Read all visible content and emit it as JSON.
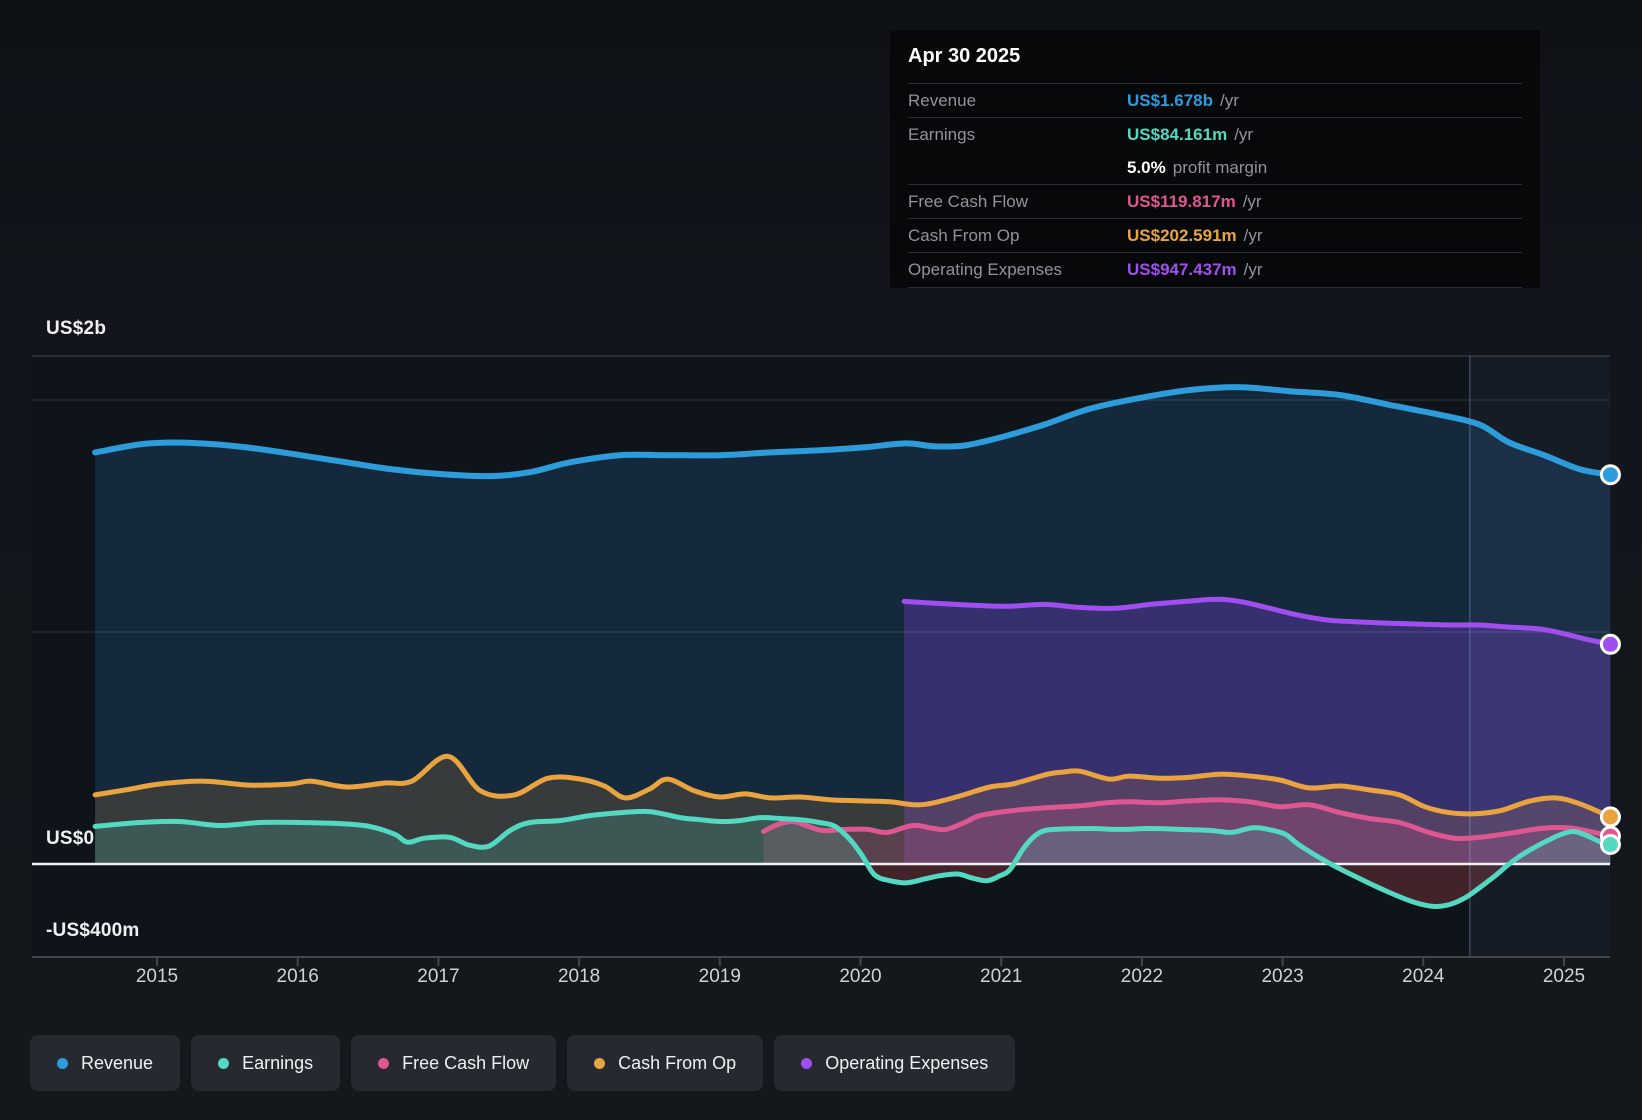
{
  "page": {
    "background": "#14181d"
  },
  "tooltip": {
    "title": "Apr 30 2025",
    "rows": [
      {
        "label": "Revenue",
        "value": "US$1.678b",
        "suffix": "/yr",
        "color": "#2d9cdb",
        "separator": true
      },
      {
        "label": "Earnings",
        "value": "US$84.161m",
        "suffix": "/yr",
        "color": "#53d9c1",
        "separator": true
      },
      {
        "label": "",
        "value": "5.0%",
        "suffix": "profit margin",
        "color": "#ffffff",
        "separator": false
      },
      {
        "label": "Free Cash Flow",
        "value": "US$119.817m",
        "suffix": "/yr",
        "color": "#df5790",
        "separator": true
      },
      {
        "label": "Cash From Op",
        "value": "US$202.591m",
        "suffix": "/yr",
        "color": "#e9a440",
        "separator": true
      },
      {
        "label": "Operating Expenses",
        "value": "US$947.437m",
        "suffix": "/yr",
        "color": "#a04ef0",
        "separator": true
      }
    ]
  },
  "legend": {
    "items": [
      {
        "id": "revenue",
        "label": "Revenue",
        "color": "#2d9cdb"
      },
      {
        "id": "earnings",
        "label": "Earnings",
        "color": "#53d9c1"
      },
      {
        "id": "free-cash-flow",
        "label": "Free Cash Flow",
        "color": "#df5790"
      },
      {
        "id": "cash-from-op",
        "label": "Cash From Op",
        "color": "#e9a440"
      },
      {
        "id": "operating-expenses",
        "label": "Operating Expenses",
        "color": "#a04ef0"
      }
    ]
  },
  "axes": {
    "y_labels": [
      {
        "text": "US$2b",
        "value": 2
      },
      {
        "text": "US$0",
        "value": 0
      },
      {
        "text": "-US$400m",
        "value": -0.4
      }
    ],
    "x_labels": [
      "2015",
      "2016",
      "2017",
      "2018",
      "2019",
      "2020",
      "2021",
      "2022",
      "2023",
      "2024",
      "2025"
    ]
  },
  "chart_data": {
    "type": "area",
    "title": "Company financial history to Apr 30 2025",
    "x_unit": "year",
    "y_unit": "US$ billions",
    "xlim": [
      2014.56,
      2025.33
    ],
    "ylim": [
      -0.4,
      2.19
    ],
    "grid_values": [
      2,
      1
    ],
    "zero_line": 0,
    "highlight_band": {
      "from": 2024.33,
      "to": 2025.33
    },
    "legend_position": "bottom",
    "series": [
      {
        "name": "Revenue",
        "color": "#2d9cdb",
        "fill": "rgba(42,110,175,0.24)",
        "line_width": 6,
        "points": [
          [
            2014.56,
            1.774
          ],
          [
            2014.88,
            1.809
          ],
          [
            2015.13,
            1.817
          ],
          [
            2015.41,
            1.809
          ],
          [
            2015.7,
            1.791
          ],
          [
            2016.02,
            1.762
          ],
          [
            2016.34,
            1.732
          ],
          [
            2016.66,
            1.702
          ],
          [
            2017.01,
            1.681
          ],
          [
            2017.37,
            1.672
          ],
          [
            2017.65,
            1.689
          ],
          [
            2017.94,
            1.732
          ],
          [
            2018.29,
            1.762
          ],
          [
            2018.65,
            1.762
          ],
          [
            2019.0,
            1.762
          ],
          [
            2019.36,
            1.774
          ],
          [
            2019.71,
            1.783
          ],
          [
            2020.03,
            1.796
          ],
          [
            2020.32,
            1.813
          ],
          [
            2020.53,
            1.8
          ],
          [
            2020.74,
            1.804
          ],
          [
            2020.99,
            1.838
          ],
          [
            2021.28,
            1.889
          ],
          [
            2021.63,
            1.962
          ],
          [
            2021.99,
            2.009
          ],
          [
            2022.34,
            2.043
          ],
          [
            2022.7,
            2.055
          ],
          [
            2023.05,
            2.038
          ],
          [
            2023.41,
            2.021
          ],
          [
            2023.76,
            1.979
          ],
          [
            2024.12,
            1.936
          ],
          [
            2024.4,
            1.894
          ],
          [
            2024.61,
            1.817
          ],
          [
            2024.86,
            1.762
          ],
          [
            2025.11,
            1.702
          ],
          [
            2025.33,
            1.678
          ]
        ]
      },
      {
        "name": "Operating Expenses",
        "color": "#a04ef0",
        "fill": "rgba(125,65,215,0.32)",
        "line_width": 5,
        "points": [
          [
            2020.31,
            1.132
          ],
          [
            2020.56,
            1.123
          ],
          [
            2020.81,
            1.115
          ],
          [
            2021.06,
            1.111
          ],
          [
            2021.31,
            1.119
          ],
          [
            2021.56,
            1.106
          ],
          [
            2021.81,
            1.102
          ],
          [
            2022.06,
            1.119
          ],
          [
            2022.31,
            1.132
          ],
          [
            2022.48,
            1.14
          ],
          [
            2022.59,
            1.14
          ],
          [
            2022.73,
            1.128
          ],
          [
            2022.91,
            1.102
          ],
          [
            2023.12,
            1.072
          ],
          [
            2023.33,
            1.051
          ],
          [
            2023.55,
            1.043
          ],
          [
            2023.76,
            1.038
          ],
          [
            2023.97,
            1.034
          ],
          [
            2024.19,
            1.03
          ],
          [
            2024.4,
            1.03
          ],
          [
            2024.61,
            1.021
          ],
          [
            2024.83,
            1.013
          ],
          [
            2025.01,
            0.991
          ],
          [
            2025.15,
            0.97
          ],
          [
            2025.25,
            0.957
          ],
          [
            2025.33,
            0.947
          ]
        ]
      },
      {
        "name": "Cash From Op",
        "color": "#e9a440",
        "fill": "rgba(195,135,60,0.20)",
        "line_width": 5,
        "points": [
          [
            2014.56,
            0.298
          ],
          [
            2014.81,
            0.323
          ],
          [
            2015.02,
            0.345
          ],
          [
            2015.34,
            0.357
          ],
          [
            2015.66,
            0.34
          ],
          [
            2015.95,
            0.345
          ],
          [
            2016.1,
            0.357
          ],
          [
            2016.35,
            0.332
          ],
          [
            2016.62,
            0.349
          ],
          [
            2016.81,
            0.357
          ],
          [
            2017.07,
            0.464
          ],
          [
            2017.3,
            0.315
          ],
          [
            2017.54,
            0.298
          ],
          [
            2017.78,
            0.37
          ],
          [
            2018.01,
            0.366
          ],
          [
            2018.18,
            0.336
          ],
          [
            2018.33,
            0.285
          ],
          [
            2018.5,
            0.323
          ],
          [
            2018.63,
            0.366
          ],
          [
            2018.82,
            0.315
          ],
          [
            2019.0,
            0.289
          ],
          [
            2019.18,
            0.302
          ],
          [
            2019.36,
            0.285
          ],
          [
            2019.57,
            0.289
          ],
          [
            2019.78,
            0.277
          ],
          [
            2020.0,
            0.272
          ],
          [
            2020.21,
            0.268
          ],
          [
            2020.39,
            0.255
          ],
          [
            2020.52,
            0.264
          ],
          [
            2020.71,
            0.294
          ],
          [
            2020.92,
            0.332
          ],
          [
            2021.08,
            0.345
          ],
          [
            2021.33,
            0.387
          ],
          [
            2021.44,
            0.396
          ],
          [
            2021.56,
            0.4
          ],
          [
            2021.77,
            0.366
          ],
          [
            2021.91,
            0.379
          ],
          [
            2022.13,
            0.37
          ],
          [
            2022.34,
            0.374
          ],
          [
            2022.55,
            0.387
          ],
          [
            2022.77,
            0.379
          ],
          [
            2022.98,
            0.362
          ],
          [
            2023.19,
            0.328
          ],
          [
            2023.41,
            0.336
          ],
          [
            2023.62,
            0.319
          ],
          [
            2023.83,
            0.298
          ],
          [
            2024.01,
            0.247
          ],
          [
            2024.19,
            0.221
          ],
          [
            2024.37,
            0.217
          ],
          [
            2024.55,
            0.23
          ],
          [
            2024.76,
            0.272
          ],
          [
            2024.94,
            0.285
          ],
          [
            2025.11,
            0.26
          ],
          [
            2025.33,
            0.203
          ]
        ]
      },
      {
        "name": "Free Cash Flow",
        "color": "#df5790",
        "fill": "rgba(215,85,140,0.22)",
        "line_width": 5,
        "points": [
          [
            2019.31,
            0.14
          ],
          [
            2019.41,
            0.17
          ],
          [
            2019.52,
            0.183
          ],
          [
            2019.63,
            0.162
          ],
          [
            2019.73,
            0.145
          ],
          [
            2019.89,
            0.149
          ],
          [
            2020.05,
            0.149
          ],
          [
            2020.19,
            0.136
          ],
          [
            2020.37,
            0.166
          ],
          [
            2020.52,
            0.153
          ],
          [
            2020.61,
            0.149
          ],
          [
            2020.74,
            0.179
          ],
          [
            2020.85,
            0.209
          ],
          [
            2021.08,
            0.23
          ],
          [
            2021.33,
            0.243
          ],
          [
            2021.56,
            0.251
          ],
          [
            2021.75,
            0.264
          ],
          [
            2021.91,
            0.268
          ],
          [
            2022.13,
            0.264
          ],
          [
            2022.34,
            0.272
          ],
          [
            2022.55,
            0.277
          ],
          [
            2022.77,
            0.268
          ],
          [
            2022.98,
            0.247
          ],
          [
            2023.19,
            0.255
          ],
          [
            2023.41,
            0.221
          ],
          [
            2023.62,
            0.196
          ],
          [
            2023.83,
            0.179
          ],
          [
            2024.04,
            0.136
          ],
          [
            2024.22,
            0.111
          ],
          [
            2024.4,
            0.115
          ],
          [
            2024.61,
            0.132
          ],
          [
            2024.83,
            0.153
          ],
          [
            2025.01,
            0.157
          ],
          [
            2025.15,
            0.145
          ],
          [
            2025.33,
            0.12
          ]
        ]
      },
      {
        "name": "Earnings",
        "color": "#53d9c1",
        "fill": "rgba(85,205,180,0.20)",
        "negative_fill": "rgba(205,75,85,0.28)",
        "line_width": 5,
        "points": [
          [
            2014.56,
            0.162
          ],
          [
            2014.88,
            0.179
          ],
          [
            2015.16,
            0.183
          ],
          [
            2015.45,
            0.166
          ],
          [
            2015.73,
            0.179
          ],
          [
            2016.02,
            0.179
          ],
          [
            2016.3,
            0.174
          ],
          [
            2016.51,
            0.162
          ],
          [
            2016.69,
            0.128
          ],
          [
            2016.78,
            0.094
          ],
          [
            2016.9,
            0.111
          ],
          [
            2017.08,
            0.115
          ],
          [
            2017.22,
            0.081
          ],
          [
            2017.36,
            0.077
          ],
          [
            2017.51,
            0.145
          ],
          [
            2017.65,
            0.179
          ],
          [
            2017.86,
            0.187
          ],
          [
            2018.08,
            0.209
          ],
          [
            2018.29,
            0.221
          ],
          [
            2018.5,
            0.226
          ],
          [
            2018.72,
            0.2
          ],
          [
            2018.86,
            0.191
          ],
          [
            2019.0,
            0.183
          ],
          [
            2019.14,
            0.187
          ],
          [
            2019.29,
            0.2
          ],
          [
            2019.43,
            0.196
          ],
          [
            2019.57,
            0.191
          ],
          [
            2019.71,
            0.179
          ],
          [
            2019.82,
            0.162
          ],
          [
            2019.93,
            0.102
          ],
          [
            2020.01,
            0.038
          ],
          [
            2020.1,
            -0.047
          ],
          [
            2020.21,
            -0.072
          ],
          [
            2020.33,
            -0.081
          ],
          [
            2020.46,
            -0.064
          ],
          [
            2020.56,
            -0.051
          ],
          [
            2020.69,
            -0.043
          ],
          [
            2020.79,
            -0.06
          ],
          [
            2020.9,
            -0.072
          ],
          [
            2020.99,
            -0.051
          ],
          [
            2021.06,
            -0.026
          ],
          [
            2021.15,
            0.06
          ],
          [
            2021.22,
            0.111
          ],
          [
            2021.29,
            0.14
          ],
          [
            2021.38,
            0.149
          ],
          [
            2021.63,
            0.153
          ],
          [
            2021.84,
            0.149
          ],
          [
            2022.06,
            0.153
          ],
          [
            2022.27,
            0.149
          ],
          [
            2022.48,
            0.145
          ],
          [
            2022.63,
            0.136
          ],
          [
            2022.73,
            0.149
          ],
          [
            2022.8,
            0.157
          ],
          [
            2022.9,
            0.149
          ],
          [
            2023.02,
            0.128
          ],
          [
            2023.12,
            0.081
          ],
          [
            2023.33,
            0.004
          ],
          [
            2023.55,
            -0.064
          ],
          [
            2023.76,
            -0.123
          ],
          [
            2023.94,
            -0.166
          ],
          [
            2024.08,
            -0.183
          ],
          [
            2024.19,
            -0.174
          ],
          [
            2024.3,
            -0.145
          ],
          [
            2024.4,
            -0.102
          ],
          [
            2024.51,
            -0.051
          ],
          [
            2024.61,
            0.0
          ],
          [
            2024.72,
            0.047
          ],
          [
            2024.86,
            0.094
          ],
          [
            2024.98,
            0.128
          ],
          [
            2025.07,
            0.14
          ],
          [
            2025.16,
            0.123
          ],
          [
            2025.25,
            0.098
          ],
          [
            2025.33,
            0.084
          ]
        ]
      }
    ]
  }
}
